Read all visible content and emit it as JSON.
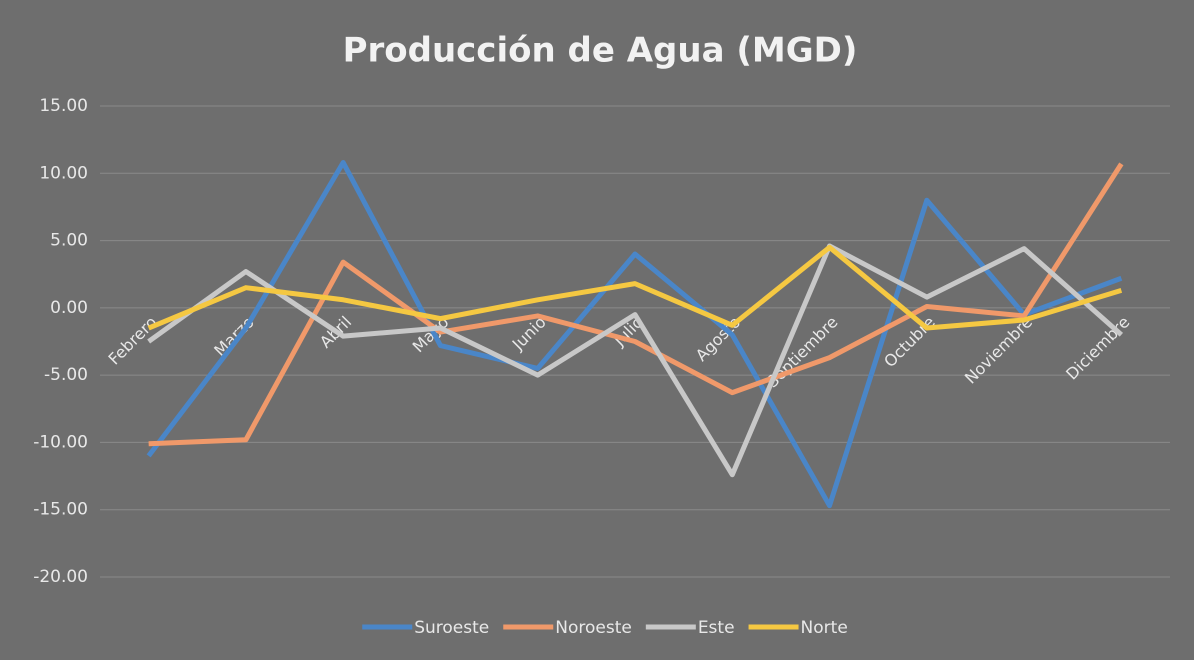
{
  "chart_data": {
    "type": "line",
    "title": "Producción de Agua (MGD)",
    "categories": [
      "Febrero",
      "Marzo",
      "Abril",
      "Mayo",
      "Junio",
      "Julio",
      "Agosto",
      "Septiembre",
      "Octubre",
      "Noviembre",
      "Diciembre"
    ],
    "series": [
      {
        "name": "Suroeste",
        "color": "#4a86c8",
        "values": [
          -11.0,
          -1.5,
          10.8,
          -2.8,
          -4.5,
          4.0,
          -2.0,
          -14.7,
          8.0,
          -0.5,
          2.2
        ]
      },
      {
        "name": "Noroeste",
        "color": "#f0996a",
        "values": [
          -10.1,
          -9.8,
          3.4,
          -1.8,
          -0.6,
          -2.5,
          -6.3,
          -3.7,
          0.1,
          -0.6,
          10.7
        ]
      },
      {
        "name": "Este",
        "color": "#c8c8c8",
        "values": [
          -2.5,
          2.7,
          -2.1,
          -1.5,
          -5.0,
          -0.5,
          -12.4,
          4.6,
          0.8,
          4.4,
          -2.0
        ]
      },
      {
        "name": "Norte",
        "color": "#f5c842",
        "values": [
          -1.5,
          1.5,
          0.6,
          -0.8,
          0.6,
          1.8,
          -1.3,
          4.5,
          -1.5,
          -0.9,
          1.3
        ]
      }
    ],
    "ylim": [
      -20,
      15
    ],
    "yticks": [
      {
        "value": -20,
        "label": "-20.00"
      },
      {
        "value": -15,
        "label": "-15.00"
      },
      {
        "value": -10,
        "label": "-10.00"
      },
      {
        "value": -5,
        "label": "-5.00"
      },
      {
        "value": 0,
        "label": "0.00"
      },
      {
        "value": 5,
        "label": "5.00"
      },
      {
        "value": 10,
        "label": "10.00"
      },
      {
        "value": 15,
        "label": "15.00"
      }
    ],
    "grid": true,
    "legend": "bottom"
  }
}
